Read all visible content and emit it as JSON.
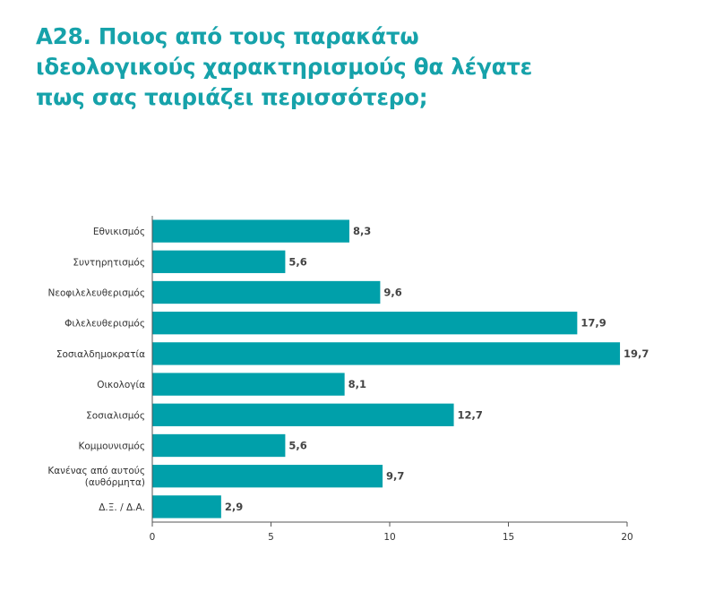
{
  "title_lines": [
    "Α28. Ποιος από τους παρακάτω",
    "ιδεολογικούς χαρακτηρισμούς θα λέγατε",
    "πως σας ταιριάζει περισσότερο;"
  ],
  "colors": {
    "title": "#16a2aa",
    "bar": "#00a0aa",
    "axis": "#555555",
    "text": "#333333"
  },
  "chart_data": {
    "type": "bar",
    "orientation": "horizontal",
    "title": "Α28. Ποιος από τους παρακάτω ιδεολογικούς χαρακτηρισμούς θα λέγατε πως σας ταιριάζει περισσότερο;",
    "categories": [
      [
        "Εθνικισμός"
      ],
      [
        "Συντηρητισμός"
      ],
      [
        "Νεοφιλελευθερισμός"
      ],
      [
        "Φιλελευθερισμός"
      ],
      [
        "Σοσιαλδημοκρατία"
      ],
      [
        "Οικολογία"
      ],
      [
        "Σοσιαλισμός"
      ],
      [
        "Κομμουνισμός"
      ],
      [
        "Κανένας από αυτούς",
        "(αυθόρμητα)"
      ],
      [
        "Δ.Ξ. / Δ.Α."
      ]
    ],
    "values": [
      8.3,
      5.6,
      9.6,
      17.9,
      19.7,
      8.1,
      12.7,
      5.6,
      9.7,
      2.9
    ],
    "value_labels": [
      "8,3",
      "5,6",
      "9,6",
      "17,9",
      "19,7",
      "8,1",
      "12,7",
      "5,6",
      "9,7",
      "2,9"
    ],
    "xlim": [
      0,
      20
    ],
    "xticks": [
      0,
      5,
      10,
      15,
      20
    ],
    "xtick_labels": [
      "0",
      "5",
      "10",
      "15",
      "20"
    ],
    "grid": false,
    "legend": "none",
    "xlabel": "",
    "ylabel": ""
  }
}
